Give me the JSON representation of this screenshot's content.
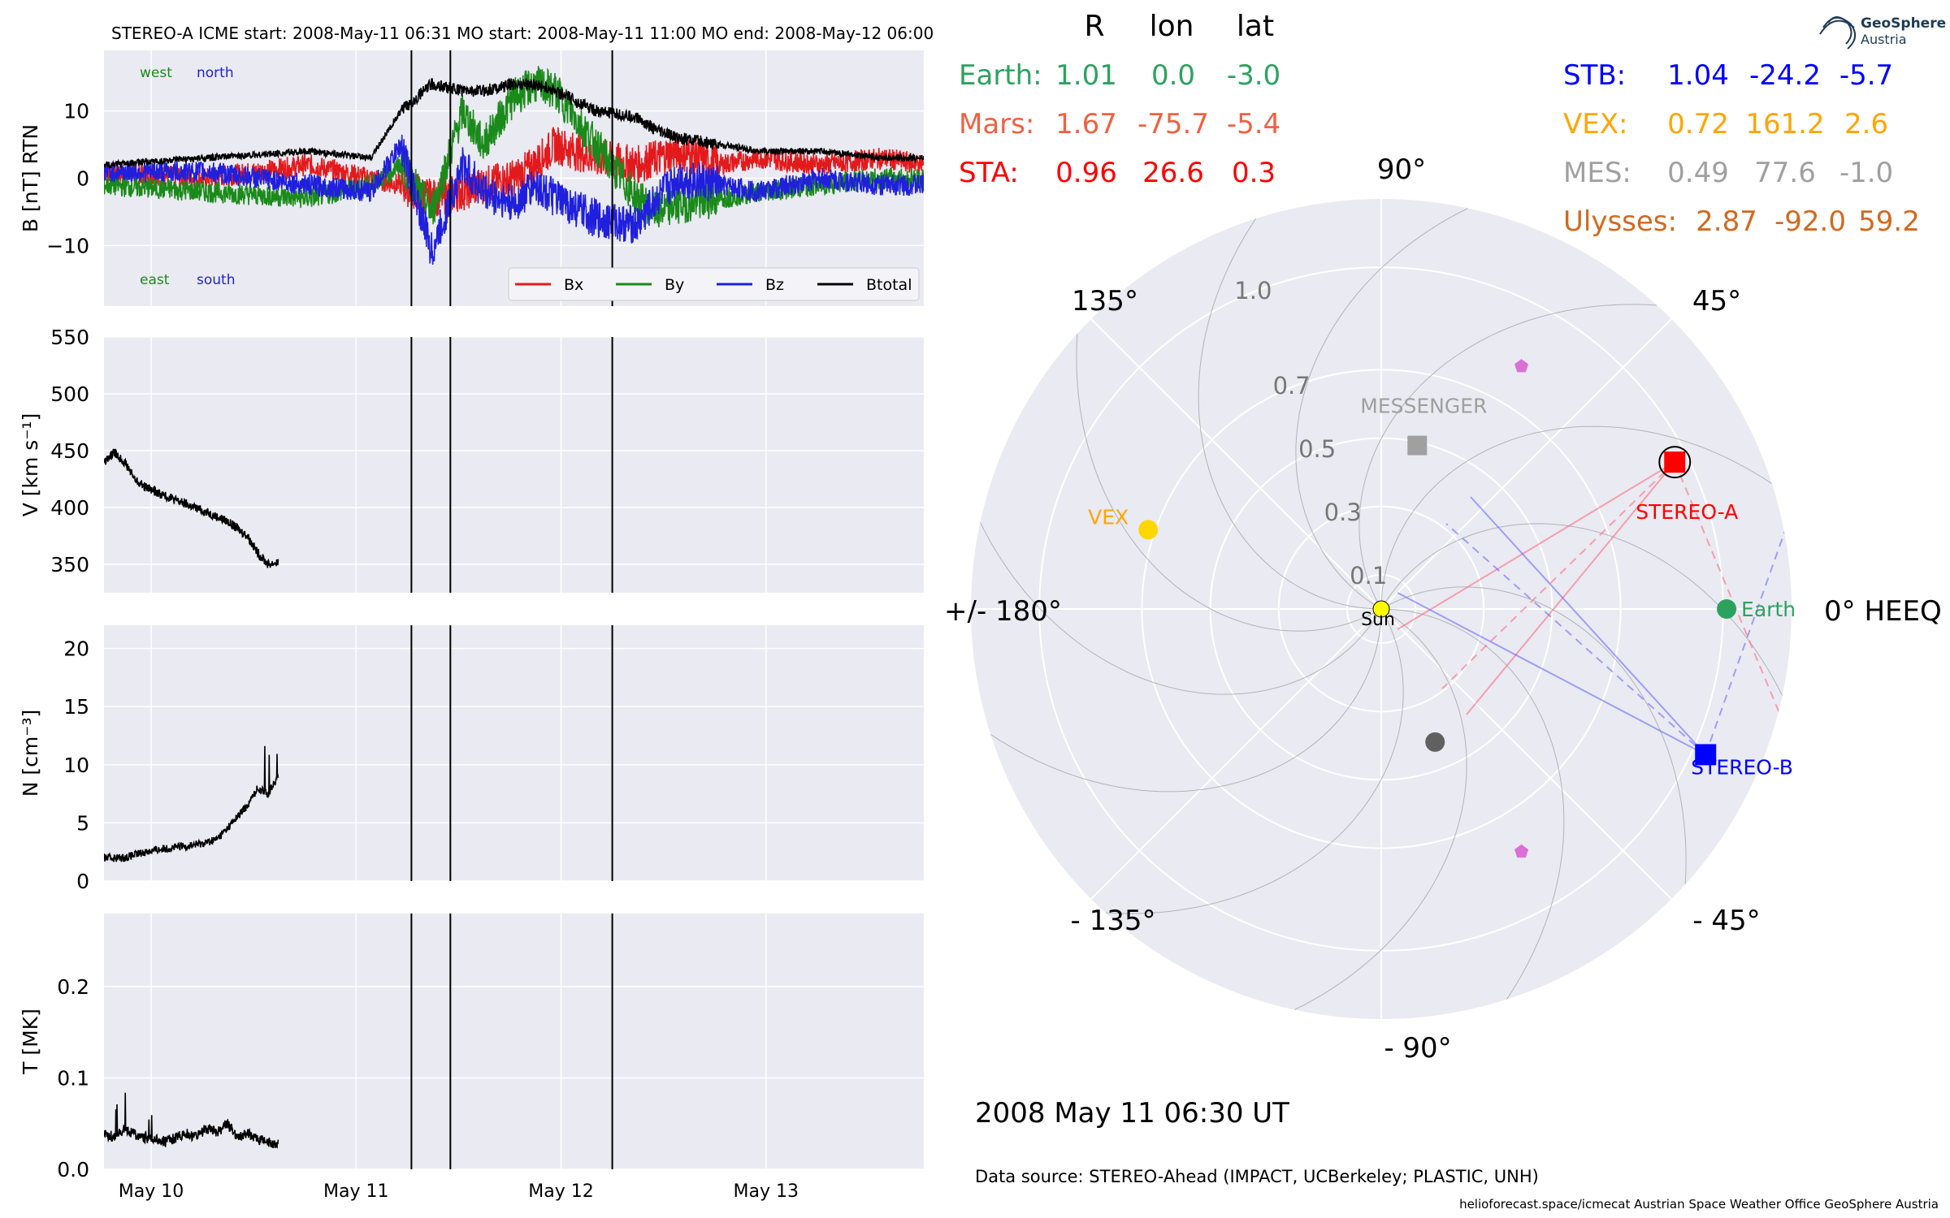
{
  "header": {
    "title": "STEREO-A    ICME start: 2008-May-11 06:31    MO start: 2008-May-11 11:00    MO end: 2008-May-12 06:00"
  },
  "logo": {
    "line1": "GeoSphere",
    "line2": "Austria"
  },
  "colors": {
    "bx": "#e31a1c",
    "by": "#1a8a1a",
    "bz": "#1f1fdd",
    "btotal": "#000000",
    "panel_bg": "#eaeaf2",
    "grid": "#ffffff",
    "earth": "#2ca25f",
    "mars": "#f06043",
    "sta": "#ff0000",
    "stb": "#0000ff",
    "vex": "#ffa500",
    "mes": "#a0a0a0",
    "ulysses": "#d2691e",
    "psp": "#da70d6",
    "solo": "#606060",
    "sun": "#ffff00"
  },
  "chart_data": [
    {
      "type": "line",
      "panel": "B",
      "ylabel": "B [nT] RTN",
      "ylim": [
        -19,
        19
      ],
      "yticks": [
        10,
        0,
        -10
      ],
      "ytick_labels": [
        "10",
        "0",
        "−10"
      ],
      "annotations": {
        "top_left": [
          "west",
          "north"
        ],
        "bottom_left": [
          "east",
          "south"
        ]
      },
      "legend": [
        "Bx",
        "By",
        "Bz",
        "Btotal"
      ],
      "legend_position": "lower-right",
      "series": [
        {
          "name": "Bx",
          "x": [
            0,
            0.5,
            1,
            1.3,
            1.45,
            1.6,
            1.75,
            1.85,
            2,
            2.1,
            2.2,
            2.4,
            2.6,
            2.7,
            2.8,
            3,
            3.2,
            3.5,
            3.8,
            4
          ],
          "values": [
            1,
            0,
            2,
            0,
            -1,
            -3,
            -2,
            -1,
            0,
            2,
            5,
            3,
            2,
            3,
            4,
            2,
            3,
            2,
            3,
            2
          ]
        },
        {
          "name": "By",
          "x": [
            0,
            0.5,
            1,
            1.3,
            1.45,
            1.6,
            1.75,
            1.85,
            2,
            2.1,
            2.2,
            2.4,
            2.6,
            2.7,
            2.8,
            3,
            3.2,
            3.5,
            3.8,
            4
          ],
          "values": [
            -1,
            -2,
            -3,
            -1,
            2,
            -5,
            10,
            5,
            12,
            14,
            13,
            5,
            -3,
            -5,
            -4,
            -3,
            -2,
            -1,
            0,
            0
          ]
        },
        {
          "name": "Bz",
          "x": [
            0,
            0.5,
            1,
            1.3,
            1.45,
            1.6,
            1.75,
            1.85,
            2,
            2.1,
            2.2,
            2.4,
            2.6,
            2.7,
            2.8,
            3,
            3.2,
            3.5,
            3.8,
            4
          ],
          "values": [
            1,
            1,
            -1,
            -2,
            5,
            -11,
            2,
            -2,
            -4,
            -1,
            -3,
            -6,
            -7,
            -3,
            0,
            -1,
            -2,
            0,
            -1,
            -1
          ]
        },
        {
          "name": "Btotal",
          "x": [
            0,
            0.5,
            1,
            1.3,
            1.45,
            1.6,
            1.75,
            1.85,
            2,
            2.1,
            2.2,
            2.4,
            2.6,
            2.7,
            2.8,
            3,
            3.2,
            3.5,
            3.8,
            4
          ],
          "values": [
            2,
            3,
            4,
            3,
            10,
            14,
            13,
            13,
            14,
            14,
            13,
            10,
            9,
            7,
            6,
            5,
            4,
            4,
            3,
            3
          ]
        }
      ]
    },
    {
      "type": "line",
      "panel": "V",
      "ylabel": "V [km s⁻¹]",
      "ylim": [
        325,
        550
      ],
      "yticks": [
        550,
        500,
        450,
        400,
        350
      ],
      "series": [
        {
          "name": "V",
          "x": [
            0,
            0.05,
            0.1,
            0.15,
            0.2,
            0.3,
            0.4,
            0.5,
            0.6,
            0.7,
            0.75,
            0.8,
            0.85
          ],
          "values": [
            440,
            448,
            440,
            425,
            418,
            410,
            403,
            396,
            388,
            375,
            360,
            350,
            352
          ]
        }
      ]
    },
    {
      "type": "line",
      "panel": "N",
      "ylabel": "N [cm⁻³]",
      "ylim": [
        0,
        22
      ],
      "yticks": [
        20,
        15,
        10,
        5,
        0
      ],
      "series": [
        {
          "name": "N",
          "x": [
            0,
            0.1,
            0.2,
            0.3,
            0.4,
            0.5,
            0.55,
            0.6,
            0.65,
            0.7,
            0.75,
            0.8,
            0.85
          ],
          "values": [
            2,
            2,
            2.5,
            2.8,
            3,
            3.3,
            3.6,
            4.5,
            5.5,
            6.5,
            8,
            7.5,
            9
          ]
        }
      ]
    },
    {
      "type": "line",
      "panel": "T",
      "ylabel": "T [MK]",
      "ylim": [
        0,
        0.28
      ],
      "yticks": [
        0.2,
        0.1,
        0.0
      ],
      "ytick_labels": [
        "0.2",
        "0.1",
        "0.0"
      ],
      "series": [
        {
          "name": "T",
          "x": [
            0,
            0.05,
            0.1,
            0.15,
            0.2,
            0.3,
            0.4,
            0.45,
            0.5,
            0.55,
            0.6,
            0.65,
            0.7,
            0.75,
            0.8,
            0.85
          ],
          "values": [
            0.04,
            0.035,
            0.045,
            0.038,
            0.035,
            0.03,
            0.04,
            0.035,
            0.045,
            0.04,
            0.05,
            0.035,
            0.04,
            0.032,
            0.03,
            0.028
          ]
        }
      ]
    },
    {
      "type": "polar-scatter",
      "panel": "orbit",
      "angle_labels": [
        "90°",
        "45°",
        "0° HEEQ",
        "- 45°",
        "- 90°",
        "- 135°",
        "+/- 180°",
        "135°"
      ],
      "radius_ticks": [
        0.1,
        0.3,
        0.5,
        0.7,
        1.0
      ],
      "rmax": 1.2,
      "bodies": [
        {
          "name": "STEREO-A",
          "r": 0.96,
          "lon": 26.6,
          "label": "STEREO-A"
        },
        {
          "name": "STEREO-B",
          "r": 1.04,
          "lon": -24.2,
          "label": "STEREO-B"
        },
        {
          "name": "Earth",
          "r": 1.01,
          "lon": 0.0,
          "label": "Earth"
        },
        {
          "name": "VEX",
          "r": 0.72,
          "lon": 161.2,
          "label": "VEX"
        },
        {
          "name": "MESSENGER",
          "r": 0.49,
          "lon": 77.6,
          "label": "MESSENGER"
        },
        {
          "name": "Sun",
          "r": 0.0,
          "lon": 0.0,
          "label": "Sun"
        }
      ],
      "unlabeled_markers": [
        {
          "kind": "pentagon",
          "r": 0.82,
          "lon": 60
        },
        {
          "kind": "pentagon",
          "r": 0.82,
          "lon": -60
        },
        {
          "kind": "circle",
          "r": 0.42,
          "lon": -68
        }
      ]
    }
  ],
  "x_axis": {
    "range_days": [
      0,
      4
    ],
    "ticks": [
      {
        "x": 0.23,
        "label": "May 10"
      },
      {
        "x": 1.23,
        "label": "May 11"
      },
      {
        "x": 2.23,
        "label": "May 12"
      },
      {
        "x": 3.23,
        "label": "May 13"
      }
    ]
  },
  "event_lines_x": [
    1.5,
    1.69,
    2.48
  ],
  "positions_table": {
    "header": [
      "R",
      "lon",
      "lat"
    ],
    "left": [
      {
        "name": "Earth:",
        "r": "1.01",
        "lon": "0.0",
        "lat": "-3.0",
        "color_key": "earth"
      },
      {
        "name": "Mars:",
        "r": "1.67",
        "lon": "-75.7",
        "lat": "-5.4",
        "color_key": "mars"
      },
      {
        "name": "STA:",
        "r": "0.96",
        "lon": "26.6",
        "lat": "0.3",
        "color_key": "sta"
      }
    ],
    "right": [
      {
        "name": "STB:",
        "r": "1.04",
        "lon": "-24.2",
        "lat": "-5.7",
        "color_key": "stb"
      },
      {
        "name": "VEX:",
        "r": "0.72",
        "lon": "161.2",
        "lat": "2.6",
        "color_key": "vex"
      },
      {
        "name": "MES:",
        "r": "0.49",
        "lon": "77.6",
        "lat": "-1.0",
        "color_key": "mes"
      },
      {
        "name": "Ulysses:",
        "r": "2.87",
        "lon": "-92.0",
        "lat": "59.2",
        "color_key": "ulysses"
      }
    ]
  },
  "timestamp": "2008 May 11  06:30 UT",
  "data_source": "Data source: STEREO-Ahead (IMPACT, UCBerkeley; PLASTIC, UNH)",
  "footer": "helioforecast.space/icmecat   Austrian Space Weather Office   GeoSphere Austria"
}
